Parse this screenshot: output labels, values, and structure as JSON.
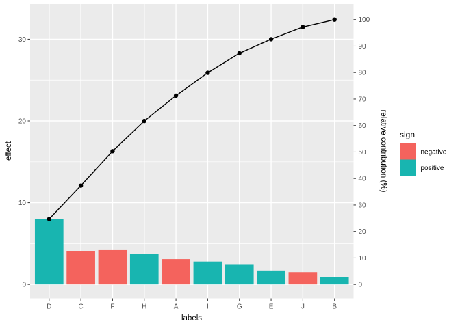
{
  "figure": {
    "background": "#FFFFFF",
    "panel_background": "#EBEBEB",
    "gridline_color": "#FFFFFF",
    "tick_mark_color": "#333333",
    "tick_label_color": "#4D4D4D"
  },
  "chart_data": {
    "type": "bar",
    "variant": "pareto",
    "title": "",
    "categories": [
      "D",
      "C",
      "F",
      "H",
      "A",
      "I",
      "G",
      "E",
      "J",
      "B"
    ],
    "bar_values": [
      8.0,
      4.1,
      4.2,
      3.7,
      3.1,
      2.8,
      2.4,
      1.7,
      1.5,
      0.9
    ],
    "bar_signs": [
      "positive",
      "negative",
      "negative",
      "positive",
      "negative",
      "positive",
      "positive",
      "positive",
      "negative",
      "positive"
    ],
    "cumulative_effect": [
      8.0,
      12.1,
      16.3,
      20.0,
      23.1,
      25.9,
      28.3,
      30.0,
      31.5,
      32.4
    ],
    "cumulative_pct": [
      24.7,
      37.3,
      50.3,
      61.7,
      71.3,
      79.9,
      87.3,
      92.6,
      97.2,
      100.0
    ],
    "total_effect": 32.4,
    "xlabel": "labels",
    "ylabel": "effect",
    "y2label": "relative contribution (%)",
    "y_ticks": [
      0,
      10,
      20,
      30
    ],
    "y_minor_ticks": [
      5,
      15,
      25
    ],
    "y2_ticks": [
      0,
      10,
      20,
      30,
      40,
      50,
      60,
      70,
      80,
      90,
      100
    ],
    "ylim": [
      -1.7,
      34.3
    ],
    "grid": true,
    "line_color": "#000000",
    "legend": {
      "title": "sign",
      "position": "right",
      "items": [
        {
          "label": "negative",
          "color": "#F4635D"
        },
        {
          "label": "positive",
          "color": "#18B5B0"
        }
      ]
    }
  }
}
